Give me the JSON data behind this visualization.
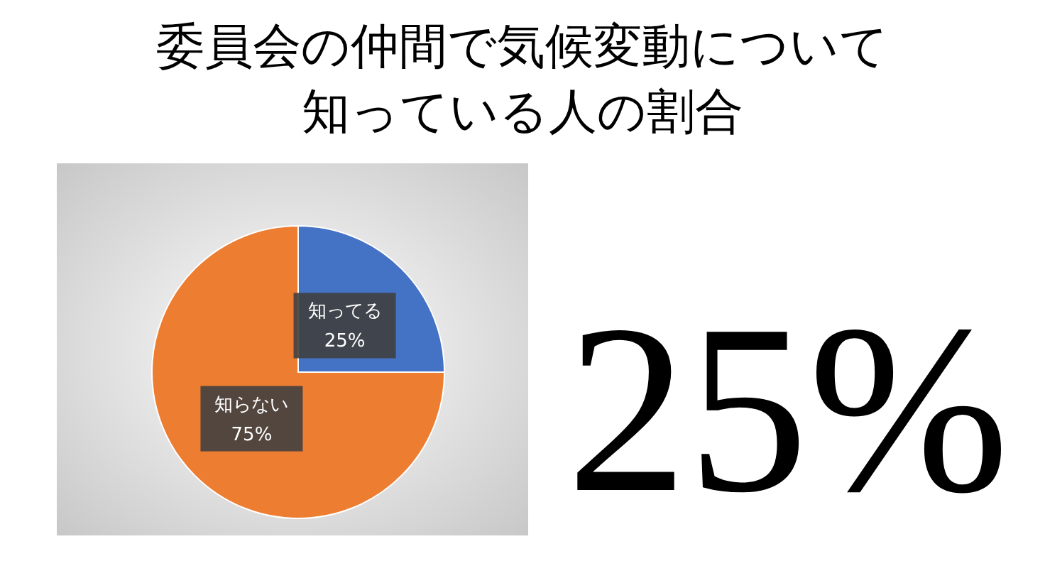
{
  "chart_data": {
    "type": "pie",
    "title": "委員会の仲間で気候変動について知っている人の割合",
    "categories": [
      "知ってる",
      "知らない"
    ],
    "values": [
      25,
      75
    ],
    "colors": [
      "#4472c4",
      "#ed7d31"
    ],
    "value_labels": [
      "25%",
      "75%"
    ],
    "legend": false,
    "annotations": [
      "25%"
    ]
  }
}
